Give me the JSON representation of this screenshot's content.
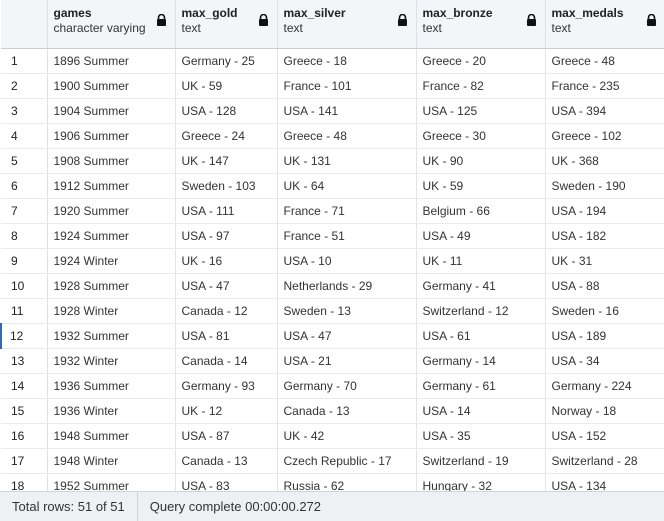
{
  "columns": [
    {
      "name": "games",
      "type": "character varying",
      "locked": true
    },
    {
      "name": "max_gold",
      "type": "text",
      "locked": true
    },
    {
      "name": "max_silver",
      "type": "text",
      "locked": true
    },
    {
      "name": "max_bronze",
      "type": "text",
      "locked": true
    },
    {
      "name": "max_medals",
      "type": "text",
      "locked": true
    }
  ],
  "rows": [
    {
      "n": "1",
      "games": "1896 Summer",
      "gold": "Germany - 25",
      "silver": "Greece - 18",
      "bronze": "Greece - 20",
      "medals": "Greece - 48"
    },
    {
      "n": "2",
      "games": "1900 Summer",
      "gold": "UK - 59",
      "silver": "France - 101",
      "bronze": "France - 82",
      "medals": "France - 235"
    },
    {
      "n": "3",
      "games": "1904 Summer",
      "gold": "USA - 128",
      "silver": "USA - 141",
      "bronze": "USA - 125",
      "medals": "USA - 394"
    },
    {
      "n": "4",
      "games": "1906 Summer",
      "gold": "Greece - 24",
      "silver": "Greece - 48",
      "bronze": "Greece - 30",
      "medals": "Greece - 102"
    },
    {
      "n": "5",
      "games": "1908 Summer",
      "gold": "UK - 147",
      "silver": "UK - 131",
      "bronze": "UK - 90",
      "medals": "UK - 368"
    },
    {
      "n": "6",
      "games": "1912 Summer",
      "gold": "Sweden - 103",
      "silver": "UK - 64",
      "bronze": "UK - 59",
      "medals": "Sweden - 190"
    },
    {
      "n": "7",
      "games": "1920 Summer",
      "gold": "USA - 111",
      "silver": "France - 71",
      "bronze": "Belgium - 66",
      "medals": "USA - 194"
    },
    {
      "n": "8",
      "games": "1924 Summer",
      "gold": "USA - 97",
      "silver": "France - 51",
      "bronze": "USA - 49",
      "medals": "USA - 182"
    },
    {
      "n": "9",
      "games": "1924 Winter",
      "gold": "UK - 16",
      "silver": "USA - 10",
      "bronze": "UK - 11",
      "medals": "UK - 31"
    },
    {
      "n": "10",
      "games": "1928 Summer",
      "gold": "USA - 47",
      "silver": "Netherlands - 29",
      "bronze": "Germany - 41",
      "medals": "USA - 88"
    },
    {
      "n": "11",
      "games": "1928 Winter",
      "gold": "Canada - 12",
      "silver": "Sweden - 13",
      "bronze": "Switzerland - 12",
      "medals": "Sweden - 16"
    },
    {
      "n": "12",
      "games": "1932 Summer",
      "gold": "USA - 81",
      "silver": "USA - 47",
      "bronze": "USA - 61",
      "medals": "USA - 189"
    },
    {
      "n": "13",
      "games": "1932 Winter",
      "gold": "Canada - 14",
      "silver": "USA - 21",
      "bronze": "Germany - 14",
      "medals": "USA - 34"
    },
    {
      "n": "14",
      "games": "1936 Summer",
      "gold": "Germany - 93",
      "silver": "Germany - 70",
      "bronze": "Germany - 61",
      "medals": "Germany - 224"
    },
    {
      "n": "15",
      "games": "1936 Winter",
      "gold": "UK - 12",
      "silver": "Canada - 13",
      "bronze": "USA - 14",
      "medals": "Norway - 18"
    },
    {
      "n": "16",
      "games": "1948 Summer",
      "gold": "USA - 87",
      "silver": "UK - 42",
      "bronze": "USA - 35",
      "medals": "USA - 152"
    },
    {
      "n": "17",
      "games": "1948 Winter",
      "gold": "Canada - 13",
      "silver": "Czech Republic - 17",
      "bronze": "Switzerland - 19",
      "medals": "Switzerland - 28"
    },
    {
      "n": "18",
      "games": "1952 Summer",
      "gold": "USA - 83",
      "silver": "Russia - 62",
      "bronze": "Hungary - 32",
      "medals": "USA - 134"
    }
  ],
  "status": {
    "total_rows": "Total rows: 51 of 51",
    "query": "Query complete 00:00:00.272"
  },
  "colors": {
    "selected_row_marker": "#3a67b1"
  }
}
